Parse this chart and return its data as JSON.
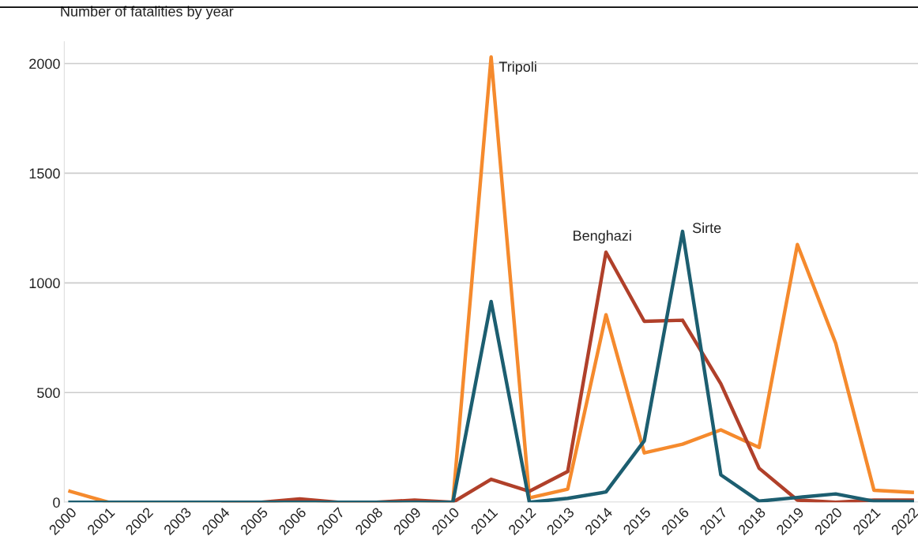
{
  "chart_data": {
    "type": "line",
    "ylabel": "Number of fatalities by year",
    "categories": [
      "2000",
      "2001",
      "2002",
      "2003",
      "2004",
      "2005",
      "2006",
      "2007",
      "2008",
      "2009",
      "2010",
      "2011",
      "2012",
      "2013",
      "2014",
      "2015",
      "2016",
      "2017",
      "2018",
      "2019",
      "2020",
      "2021",
      "2022"
    ],
    "series": [
      {
        "name": "Tripoli",
        "color": "#f58a2d",
        "values": [
          50,
          0,
          0,
          0,
          0,
          0,
          0,
          0,
          0,
          0,
          0,
          2030,
          20,
          60,
          855,
          225,
          265,
          330,
          250,
          1175,
          725,
          55,
          45
        ]
      },
      {
        "name": "Benghazi",
        "color": "#b0402a",
        "values": [
          null,
          null,
          null,
          null,
          0,
          0,
          15,
          0,
          0,
          10,
          0,
          105,
          50,
          140,
          1140,
          825,
          830,
          540,
          155,
          10,
          0,
          10,
          10
        ]
      },
      {
        "name": "Sirte",
        "color": "#1c5e70",
        "values": [
          0,
          0,
          0,
          0,
          0,
          0,
          0,
          0,
          0,
          0,
          0,
          915,
          0,
          18,
          47,
          280,
          1235,
          125,
          5,
          22,
          38,
          5,
          3
        ]
      }
    ],
    "ylim": [
      0,
      2100
    ],
    "yticks": [
      0,
      500,
      1000,
      1500,
      2000
    ],
    "grid": "y",
    "legend": false,
    "marker": "none",
    "line_style": "solid"
  }
}
